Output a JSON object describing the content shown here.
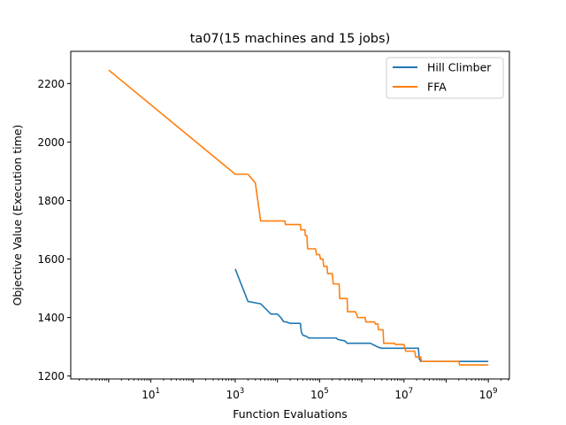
{
  "chart_data": {
    "type": "line",
    "title": "ta07(15 machines and 15 jobs)",
    "xlabel": "Function Evaluations",
    "ylabel": "Objective Value (Execution time)",
    "xscale": "log",
    "xlim_exponent": [
      -0.9,
      9.5
    ],
    "ylim": [
      1190,
      2310
    ],
    "x_ticks": [
      {
        "exp": 1,
        "base": "10",
        "sup": "1"
      },
      {
        "exp": 3,
        "base": "10",
        "sup": "3"
      },
      {
        "exp": 5,
        "base": "10",
        "sup": "5"
      },
      {
        "exp": 7,
        "base": "10",
        "sup": "7"
      },
      {
        "exp": 9,
        "base": "10",
        "sup": "9"
      }
    ],
    "y_ticks": [
      1200,
      1400,
      1600,
      1800,
      2000,
      2200
    ],
    "grid": false,
    "legend_position": "top-right",
    "series": [
      {
        "name": "Hill Climber",
        "color": "#1f77b4",
        "points": [
          [
            1000,
            1566
          ],
          [
            2000,
            1455
          ],
          [
            4000,
            1447
          ],
          [
            7000,
            1412
          ],
          [
            10000,
            1412
          ],
          [
            12000,
            1400
          ],
          [
            14000,
            1386
          ],
          [
            17000,
            1384
          ],
          [
            20000,
            1380
          ],
          [
            35000,
            1380
          ],
          [
            37000,
            1350
          ],
          [
            40000,
            1340
          ],
          [
            50000,
            1335
          ],
          [
            55000,
            1330
          ],
          [
            250000,
            1330
          ],
          [
            270000,
            1325
          ],
          [
            400000,
            1320
          ],
          [
            450000,
            1312
          ],
          [
            1600000,
            1312
          ],
          [
            2000000,
            1305
          ],
          [
            2500000,
            1298
          ],
          [
            3000000,
            1295
          ],
          [
            22000000,
            1295
          ],
          [
            23000000,
            1260
          ],
          [
            25000000,
            1250
          ],
          [
            1000000000,
            1250
          ]
        ]
      },
      {
        "name": "FFA",
        "color": "#ff7f0e",
        "points": [
          [
            1,
            2246
          ],
          [
            1000,
            1890
          ],
          [
            2000,
            1890
          ],
          [
            3000,
            1860
          ],
          [
            4000,
            1730
          ],
          [
            15000,
            1730
          ],
          [
            15500,
            1718
          ],
          [
            35000,
            1718
          ],
          [
            36000,
            1700
          ],
          [
            45000,
            1700
          ],
          [
            46000,
            1680
          ],
          [
            50000,
            1680
          ],
          [
            52000,
            1635
          ],
          [
            80000,
            1635
          ],
          [
            85000,
            1615
          ],
          [
            100000,
            1615
          ],
          [
            105000,
            1600
          ],
          [
            120000,
            1600
          ],
          [
            125000,
            1575
          ],
          [
            150000,
            1575
          ],
          [
            155000,
            1550
          ],
          [
            200000,
            1550
          ],
          [
            210000,
            1515
          ],
          [
            290000,
            1515
          ],
          [
            300000,
            1465
          ],
          [
            450000,
            1465
          ],
          [
            460000,
            1420
          ],
          [
            700000,
            1420
          ],
          [
            750000,
            1412
          ],
          [
            800000,
            1400
          ],
          [
            1200000,
            1400
          ],
          [
            1250000,
            1385
          ],
          [
            2000000,
            1385
          ],
          [
            2100000,
            1378
          ],
          [
            2400000,
            1378
          ],
          [
            2500000,
            1358
          ],
          [
            3200000,
            1358
          ],
          [
            3300000,
            1312
          ],
          [
            6000000,
            1312
          ],
          [
            6200000,
            1308
          ],
          [
            10000000,
            1308
          ],
          [
            11000000,
            1285
          ],
          [
            18000000,
            1285
          ],
          [
            19000000,
            1265
          ],
          [
            25000000,
            1265
          ],
          [
            26000000,
            1250
          ],
          [
            200000000,
            1250
          ],
          [
            210000000,
            1238
          ],
          [
            1000000000,
            1238
          ]
        ]
      }
    ]
  }
}
